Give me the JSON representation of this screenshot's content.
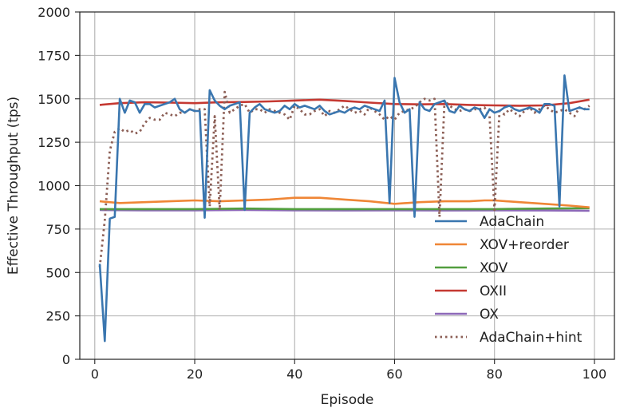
{
  "chart_data": {
    "type": "line",
    "title": "",
    "xlabel": "Episode",
    "ylabel": "Effective Throughput (tps)",
    "xlim": [
      -3,
      104
    ],
    "ylim": [
      0,
      2000
    ],
    "xticks": [
      0,
      20,
      40,
      60,
      80,
      100
    ],
    "yticks": [
      0,
      250,
      500,
      750,
      1000,
      1250,
      1500,
      1750,
      2000
    ],
    "grid": true,
    "legend_position": "lower-right",
    "series": [
      {
        "name": "AdaChain",
        "color": "#3a76af",
        "style": "solid",
        "points": [
          [
            1,
            550
          ],
          [
            2,
            105
          ],
          [
            3,
            810
          ],
          [
            4,
            820
          ],
          [
            5,
            1500
          ],
          [
            6,
            1420
          ],
          [
            7,
            1490
          ],
          [
            8,
            1480
          ],
          [
            9,
            1420
          ],
          [
            10,
            1470
          ],
          [
            11,
            1470
          ],
          [
            12,
            1450
          ],
          [
            13,
            1460
          ],
          [
            14,
            1470
          ],
          [
            15,
            1480
          ],
          [
            16,
            1500
          ],
          [
            17,
            1440
          ],
          [
            18,
            1420
          ],
          [
            19,
            1440
          ],
          [
            20,
            1430
          ],
          [
            21,
            1430
          ],
          [
            22,
            815
          ],
          [
            23,
            1550
          ],
          [
            24,
            1490
          ],
          [
            25,
            1460
          ],
          [
            26,
            1440
          ],
          [
            27,
            1460
          ],
          [
            28,
            1470
          ],
          [
            29,
            1480
          ],
          [
            30,
            860
          ],
          [
            31,
            1420
          ],
          [
            32,
            1450
          ],
          [
            33,
            1470
          ],
          [
            34,
            1440
          ],
          [
            35,
            1430
          ],
          [
            36,
            1420
          ],
          [
            37,
            1430
          ],
          [
            38,
            1460
          ],
          [
            39,
            1440
          ],
          [
            40,
            1470
          ],
          [
            41,
            1450
          ],
          [
            42,
            1460
          ],
          [
            43,
            1450
          ],
          [
            44,
            1440
          ],
          [
            45,
            1460
          ],
          [
            46,
            1430
          ],
          [
            47,
            1410
          ],
          [
            48,
            1420
          ],
          [
            49,
            1430
          ],
          [
            50,
            1420
          ],
          [
            51,
            1440
          ],
          [
            52,
            1450
          ],
          [
            53,
            1440
          ],
          [
            54,
            1460
          ],
          [
            55,
            1450
          ],
          [
            56,
            1440
          ],
          [
            57,
            1430
          ],
          [
            58,
            1490
          ],
          [
            59,
            900
          ],
          [
            60,
            1620
          ],
          [
            61,
            1480
          ],
          [
            62,
            1420
          ],
          [
            63,
            1440
          ],
          [
            64,
            820
          ],
          [
            65,
            1480
          ],
          [
            66,
            1440
          ],
          [
            67,
            1430
          ],
          [
            68,
            1470
          ],
          [
            69,
            1480
          ],
          [
            70,
            1490
          ],
          [
            71,
            1430
          ],
          [
            72,
            1420
          ],
          [
            73,
            1460
          ],
          [
            74,
            1440
          ],
          [
            75,
            1430
          ],
          [
            76,
            1450
          ],
          [
            77,
            1440
          ],
          [
            78,
            1390
          ],
          [
            79,
            1440
          ],
          [
            80,
            1420
          ],
          [
            81,
            1430
          ],
          [
            82,
            1450
          ],
          [
            83,
            1460
          ],
          [
            84,
            1440
          ],
          [
            85,
            1430
          ],
          [
            86,
            1440
          ],
          [
            87,
            1450
          ],
          [
            88,
            1440
          ],
          [
            89,
            1420
          ],
          [
            90,
            1470
          ],
          [
            91,
            1470
          ],
          [
            92,
            1460
          ],
          [
            93,
            880
          ],
          [
            94,
            1635
          ],
          [
            95,
            1430
          ],
          [
            96,
            1440
          ],
          [
            97,
            1450
          ],
          [
            98,
            1440
          ],
          [
            99,
            1440
          ]
        ]
      },
      {
        "name": "XOV+reorder",
        "color": "#ef8636",
        "style": "solid",
        "points": [
          [
            1,
            910
          ],
          [
            5,
            900
          ],
          [
            10,
            905
          ],
          [
            15,
            910
          ],
          [
            20,
            915
          ],
          [
            25,
            910
          ],
          [
            30,
            915
          ],
          [
            35,
            920
          ],
          [
            40,
            930
          ],
          [
            45,
            930
          ],
          [
            50,
            920
          ],
          [
            55,
            910
          ],
          [
            60,
            895
          ],
          [
            65,
            905
          ],
          [
            70,
            910
          ],
          [
            75,
            910
          ],
          [
            78,
            915
          ],
          [
            80,
            915
          ],
          [
            85,
            905
          ],
          [
            90,
            895
          ],
          [
            95,
            885
          ],
          [
            99,
            875
          ]
        ]
      },
      {
        "name": "XOV",
        "color": "#529e3f",
        "style": "solid",
        "points": [
          [
            1,
            865
          ],
          [
            10,
            865
          ],
          [
            20,
            865
          ],
          [
            30,
            868
          ],
          [
            40,
            865
          ],
          [
            50,
            865
          ],
          [
            60,
            865
          ],
          [
            70,
            865
          ],
          [
            80,
            865
          ],
          [
            90,
            868
          ],
          [
            99,
            870
          ]
        ]
      },
      {
        "name": "OXII",
        "color": "#c53932",
        "style": "solid",
        "points": [
          [
            1,
            1465
          ],
          [
            5,
            1475
          ],
          [
            10,
            1480
          ],
          [
            15,
            1478
          ],
          [
            20,
            1475
          ],
          [
            25,
            1480
          ],
          [
            30,
            1482
          ],
          [
            35,
            1485
          ],
          [
            40,
            1490
          ],
          [
            45,
            1495
          ],
          [
            50,
            1488
          ],
          [
            55,
            1478
          ],
          [
            60,
            1470
          ],
          [
            65,
            1468
          ],
          [
            70,
            1470
          ],
          [
            75,
            1465
          ],
          [
            80,
            1462
          ],
          [
            85,
            1460
          ],
          [
            90,
            1462
          ],
          [
            95,
            1475
          ],
          [
            99,
            1495
          ]
        ]
      },
      {
        "name": "OX",
        "color": "#8d69b8",
        "style": "solid",
        "points": [
          [
            1,
            860
          ],
          [
            10,
            858
          ],
          [
            20,
            858
          ],
          [
            30,
            860
          ],
          [
            40,
            858
          ],
          [
            50,
            857
          ],
          [
            60,
            858
          ],
          [
            70,
            857
          ],
          [
            80,
            858
          ],
          [
            90,
            857
          ],
          [
            99,
            855
          ]
        ]
      },
      {
        "name": "AdaChain+hint",
        "color": "#8c5f56",
        "style": "dotted",
        "points": [
          [
            1,
            530
          ],
          [
            2,
            800
          ],
          [
            3,
            1200
          ],
          [
            4,
            1310
          ],
          [
            5,
            1330
          ],
          [
            6,
            1310
          ],
          [
            7,
            1320
          ],
          [
            8,
            1300
          ],
          [
            9,
            1310
          ],
          [
            10,
            1360
          ],
          [
            11,
            1390
          ],
          [
            12,
            1380
          ],
          [
            13,
            1380
          ],
          [
            14,
            1420
          ],
          [
            15,
            1410
          ],
          [
            16,
            1400
          ],
          [
            17,
            1420
          ],
          [
            18,
            1420
          ],
          [
            19,
            1440
          ],
          [
            20,
            1430
          ],
          [
            21,
            1440
          ],
          [
            22,
            1440
          ],
          [
            23,
            880
          ],
          [
            24,
            1400
          ],
          [
            25,
            860
          ],
          [
            26,
            1540
          ],
          [
            27,
            1420
          ],
          [
            28,
            1440
          ],
          [
            29,
            1460
          ],
          [
            30,
            1470
          ],
          [
            31,
            1420
          ],
          [
            32,
            1440
          ],
          [
            33,
            1440
          ],
          [
            34,
            1420
          ],
          [
            35,
            1440
          ],
          [
            36,
            1430
          ],
          [
            37,
            1420
          ],
          [
            38,
            1410
          ],
          [
            39,
            1380
          ],
          [
            40,
            1460
          ],
          [
            41,
            1440
          ],
          [
            42,
            1410
          ],
          [
            43,
            1410
          ],
          [
            44,
            1430
          ],
          [
            45,
            1440
          ],
          [
            46,
            1400
          ],
          [
            47,
            1430
          ],
          [
            48,
            1420
          ],
          [
            49,
            1440
          ],
          [
            50,
            1460
          ],
          [
            51,
            1440
          ],
          [
            52,
            1420
          ],
          [
            53,
            1430
          ],
          [
            54,
            1410
          ],
          [
            55,
            1450
          ],
          [
            56,
            1430
          ],
          [
            57,
            1410
          ],
          [
            58,
            1380
          ],
          [
            59,
            1400
          ],
          [
            60,
            1380
          ],
          [
            61,
            1420
          ],
          [
            62,
            1430
          ],
          [
            63,
            1440
          ],
          [
            64,
            1450
          ],
          [
            65,
            1480
          ],
          [
            66,
            1500
          ],
          [
            67,
            1490
          ],
          [
            68,
            1500
          ],
          [
            69,
            820
          ],
          [
            70,
            1490
          ],
          [
            71,
            1460
          ],
          [
            72,
            1440
          ],
          [
            73,
            1430
          ],
          [
            74,
            1440
          ],
          [
            75,
            1430
          ],
          [
            76,
            1440
          ],
          [
            77,
            1440
          ],
          [
            78,
            1450
          ],
          [
            79,
            1400
          ],
          [
            80,
            860
          ],
          [
            81,
            1430
          ],
          [
            82,
            1410
          ],
          [
            83,
            1440
          ],
          [
            84,
            1420
          ],
          [
            85,
            1400
          ],
          [
            86,
            1430
          ],
          [
            87,
            1450
          ],
          [
            88,
            1420
          ],
          [
            89,
            1440
          ],
          [
            90,
            1460
          ],
          [
            91,
            1440
          ],
          [
            92,
            1420
          ],
          [
            93,
            1430
          ],
          [
            94,
            1440
          ],
          [
            95,
            1420
          ],
          [
            96,
            1400
          ],
          [
            97,
            1450
          ],
          [
            98,
            1440
          ],
          [
            99,
            1460
          ]
        ]
      }
    ]
  }
}
